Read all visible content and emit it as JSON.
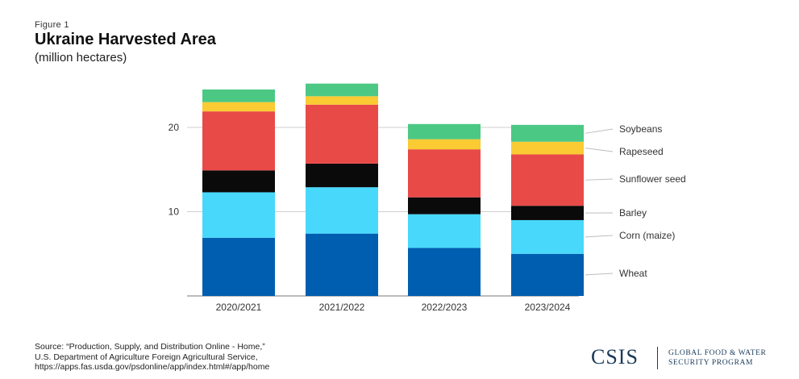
{
  "header": {
    "figure_label": "Figure 1",
    "title": "Ukraine Harvested Area",
    "subtitle": "(million hectares)"
  },
  "chart_data": {
    "type": "bar",
    "stacked": true,
    "categories": [
      "2020/2021",
      "2021/2022",
      "2022/2023",
      "2023/2024"
    ],
    "series": [
      {
        "name": "Wheat",
        "color": "#005EB0",
        "values": [
          6.9,
          7.4,
          5.7,
          5.0
        ]
      },
      {
        "name": "Corn (maize)",
        "color": "#48D8FC",
        "values": [
          5.4,
          5.5,
          4.0,
          4.0
        ]
      },
      {
        "name": "Barley",
        "color": "#0A0A0A",
        "values": [
          2.6,
          2.8,
          2.0,
          1.7
        ]
      },
      {
        "name": "Sunflower seed",
        "color": "#E84A48",
        "values": [
          7.0,
          7.0,
          5.7,
          6.1
        ]
      },
      {
        "name": "Rapeseed",
        "color": "#FACB32",
        "values": [
          1.1,
          1.0,
          1.2,
          1.5
        ]
      },
      {
        "name": "Soybeans",
        "color": "#4CC885",
        "values": [
          1.5,
          1.5,
          1.8,
          2.0
        ]
      }
    ],
    "yticks": [
      10,
      20
    ],
    "ylim": [
      0,
      25
    ],
    "grid": true,
    "legend_position": "right, labels aligned to last bar"
  },
  "footer": {
    "source_lines": [
      "Source: “Production, Supply, and Distribution Online - Home,”",
      "U.S. Department of Agriculture Foreign Agricultural Service,",
      "https://apps.fas.usda.gov/psdonline/app/index.html#/app/home"
    ],
    "logo_text": "CSIS",
    "program_line1": "GLOBAL FOOD & WATER",
    "program_line2": "SECURITY PROGRAM"
  }
}
